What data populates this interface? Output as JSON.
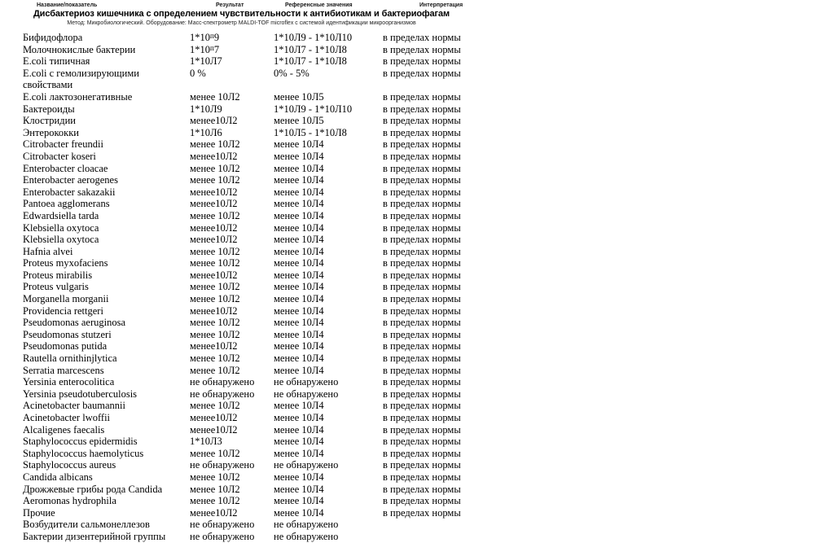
{
  "header": {
    "columns": [
      {
        "label": "Название/показатель"
      },
      {
        "label": "Результат"
      },
      {
        "label": "Референсные значения"
      },
      {
        "label": "Интерпретация"
      }
    ],
    "title": "Дисбактериоз кишечника с определением чувствительности к антибиотикам и бактериофагам",
    "method_line": "Метод: Микробиологический. Оборудование: Масс-спектрометр MALDI-TOF microflex с системой идентификации микроорганизмов"
  },
  "table": {
    "rows": [
      {
        "name": "Бифидофлора",
        "result_base": "1*10",
        "result_sup": "п",
        "result_tail": "9",
        "reference": "1*10Л9 - 1*10Л10",
        "interpretation": "в пределах нормы"
      },
      {
        "name": "Молочнокислые бактерии",
        "result_base": "1*10",
        "result_sup": "п",
        "result_tail": "7",
        "reference": "1*10Л7 - 1*10Л8",
        "interpretation": "в пределах нормы"
      },
      {
        "name": "E.coli типичная",
        "result": "1*10Л7",
        "reference": "1*10Л7 - 1*10Л8",
        "interpretation": "в пределах нормы"
      },
      {
        "name": "E.coli с гемолизирующими свойствами",
        "result": "0 %",
        "reference": "0% - 5%",
        "interpretation": "в пределах нормы"
      },
      {
        "name": "E.coli лактозонегативные",
        "result": "менее 10Л2",
        "reference": "менее 10Л5",
        "interpretation": "в пределах нормы"
      },
      {
        "name": "Бактероиды",
        "result": "1*10Л9",
        "reference": "1*10Л9 - 1*10Л10",
        "interpretation": "в пределах нормы"
      },
      {
        "name": "Клостридии",
        "result": "менее10Л2",
        "reference": "менее 10Л5",
        "interpretation": "в пределах нормы"
      },
      {
        "name": "Энтерококки",
        "result": "1*10Л6",
        "reference": "1*10Л5 - 1*10Л8",
        "interpretation": "в пределах нормы"
      },
      {
        "name": "Citrobacter freundii",
        "result": "менее 10Л2",
        "reference": "менее 10Л4",
        "interpretation": "в пределах нормы"
      },
      {
        "name": "Citrobacter koseri",
        "result": "менее10Л2",
        "reference": "менее 10Л4",
        "interpretation": "в пределах нормы"
      },
      {
        "name": "Enterobacter cloacae",
        "result": "менее 10Л2",
        "reference": "менее 10Л4",
        "interpretation": "в пределах нормы"
      },
      {
        "name": "Enterobacter aerogenes",
        "result": "менее 10Л2",
        "reference": "менее 10Л4",
        "interpretation": "в пределах нормы"
      },
      {
        "name": "Enterobacter sakazakii",
        "result": "менее10Л2",
        "reference": "менее 10Л4",
        "interpretation": "в пределах нормы"
      },
      {
        "name": "Pantoea agglomerans",
        "result": "менее10Л2",
        "reference": "менее 10Л4",
        "interpretation": "в пределах нормы"
      },
      {
        "name": "Edwardsiella tarda",
        "result": "менее 10Л2",
        "reference": "менее 10Л4",
        "interpretation": "в пределах нормы"
      },
      {
        "name": "Klebsiella oxytoca",
        "result": "менее10Л2",
        "reference": "менее 10Л4",
        "interpretation": "в пределах нормы"
      },
      {
        "name": "Klebsiella oxytoca",
        "result": "менее10Л2",
        "reference": "менее 10Л4",
        "interpretation": "в пределах нормы"
      },
      {
        "name": "Hafnia alvei",
        "result": "менее 10Л2",
        "reference": "менее 10Л4",
        "interpretation": "в пределах нормы"
      },
      {
        "name": "Proteus myxofaciens",
        "result": "менее 10Л2",
        "reference": "менее 10Л4",
        "interpretation": "в пределах нормы"
      },
      {
        "name": "Proteus mirabilis",
        "result": "менее10Л2",
        "reference": "менее 10Л4",
        "interpretation": "в пределах нормы"
      },
      {
        "name": "Proteus vulgaris",
        "result": "менее 10Л2",
        "reference": "менее 10Л4",
        "interpretation": "в пределах нормы"
      },
      {
        "name": "Morganella morganii",
        "result": "менее 10Л2",
        "reference": "менее 10Л4",
        "interpretation": "в пределах нормы"
      },
      {
        "name": "Providencia rettgeri",
        "result": "менее10Л2",
        "reference": "менее 10Л4",
        "interpretation": "в пределах нормы"
      },
      {
        "name": "Pseudomonas aeruginosa",
        "result": "менее 10Л2",
        "reference": "менее 10Л4",
        "interpretation": "в пределах нормы"
      },
      {
        "name": "Pseudomonas stutzeri",
        "result": "менее 10Л2",
        "reference": "менее 10Л4",
        "interpretation": "в пределах нормы"
      },
      {
        "name": "Pseudomonas putida",
        "result": "менее10Л2",
        "reference": "менее 10Л4",
        "interpretation": "в пределах нормы"
      },
      {
        "name": "Rautella ornithinjlytica",
        "result": "менее 10Л2",
        "reference": "менее 10Л4",
        "interpretation": "в пределах нормы"
      },
      {
        "name": "Serratia marcescens",
        "result": "менее 10Л2",
        "reference": "менее 10Л4",
        "interpretation": "в пределах нормы"
      },
      {
        "name": "Yersinia enterocolitica",
        "result": "не обнаружено",
        "reference": "не обнаружено",
        "interpretation": "в пределах нормы"
      },
      {
        "name": "Yersinia pseudotuberculosis",
        "result": "не обнаружено",
        "reference": "не обнаружено",
        "interpretation": "в пределах нормы"
      },
      {
        "name": "Acinetobacter baumannii",
        "result": "менее 10Л2",
        "reference": "менее 10Л4",
        "interpretation": "в пределах нормы"
      },
      {
        "name": "Acinetobacter lwoffii",
        "result": "менее10Л2",
        "reference": "менее 10Л4",
        "interpretation": "в пределах нормы"
      },
      {
        "name": "Alcaligenes faecalis",
        "result": "менее10Л2",
        "reference": "менее 10Л4",
        "interpretation": "в пределах нормы"
      },
      {
        "name": "Staphylococcus epidermidis",
        "result": "1*10Л3",
        "reference": "менее 10Л4",
        "interpretation": "в пределах нормы"
      },
      {
        "name": "Staphylococcus haemolyticus",
        "result": "менее 10Л2",
        "reference": "менее 10Л4",
        "interpretation": "в пределах нормы"
      },
      {
        "name": "Staphylococcus aureus",
        "result": "не обнаружено",
        "reference": "не обнаружено",
        "interpretation": "в пределах нормы"
      },
      {
        "name": "Candida albicans",
        "result": "менее 10Л2",
        "reference": "менее 10Л4",
        "interpretation": "в пределах нормы"
      },
      {
        "name": "Дрожжевые грибы рода Candida",
        "result": "менее 10Л2",
        "reference": "менее 10Л4",
        "interpretation": "в пределах нормы"
      },
      {
        "name": "Aeromonas hydrophila",
        "result": "менее 10Л2",
        "reference": "менее 10Л4",
        "interpretation": "в пределах нормы"
      },
      {
        "name": "Прочие",
        "result": "менее10Л2",
        "reference": "менее 10Л4",
        "interpretation": "в пределах нормы"
      },
      {
        "name": "Возбудители сальмонеллезов",
        "result": "не обнаружено",
        "reference": "не обнаружено",
        "interpretation": ""
      },
      {
        "name": "Бактерии дизентерийной группы",
        "result": "не обнаружено",
        "reference": "не обнаружено",
        "interpretation": ""
      }
    ]
  }
}
